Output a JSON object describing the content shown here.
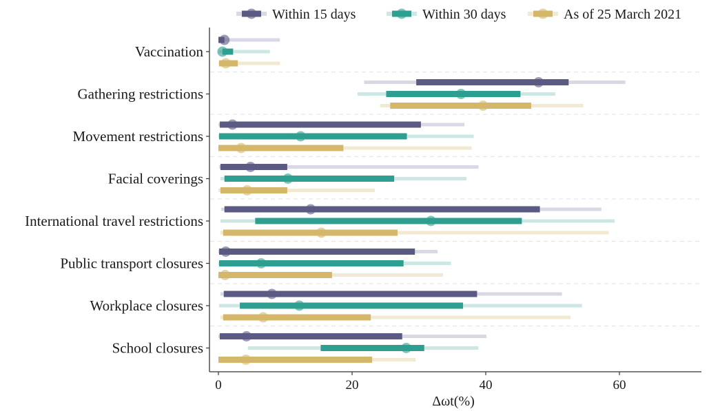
{
  "chart_data": {
    "type": "forest-interval",
    "xlabel": "Δωt(%)",
    "xlim": [
      -2,
      73
    ],
    "xticks": [
      0,
      20,
      40,
      60
    ],
    "grid": false,
    "legend_position": "top",
    "categories": [
      "Vaccination",
      "Gathering restrictions",
      "Movement restrictions",
      "Facial coverings",
      "International travel restrictions",
      "Public transport closures",
      "Workplace closures",
      "School closures"
    ],
    "series": [
      {
        "name": "Within 15 days",
        "color": "#5b5a82",
        "light_color": "#d9d8e4",
        "points": [
          {
            "point": 0.9,
            "inner": [
              0,
              0.9
            ],
            "outer": [
              0,
              9.2
            ]
          },
          {
            "point": 47.9,
            "inner": [
              29.6,
              52.4
            ],
            "outer": [
              21.8,
              60.9
            ]
          },
          {
            "point": 2.1,
            "inner": [
              0.2,
              30.3
            ],
            "outer": [
              0,
              36.8
            ]
          },
          {
            "point": 4.8,
            "inner": [
              0.3,
              10.3
            ],
            "outer": [
              0.1,
              38.9
            ]
          },
          {
            "point": 13.8,
            "inner": [
              0.9,
              48.1
            ],
            "outer": [
              0.4,
              57.3
            ]
          },
          {
            "point": 1.1,
            "inner": [
              0.1,
              29.4
            ],
            "outer": [
              0,
              32.8
            ]
          },
          {
            "point": 8.0,
            "inner": [
              0.8,
              38.7
            ],
            "outer": [
              0.3,
              51.4
            ]
          },
          {
            "point": 4.2,
            "inner": [
              0.2,
              27.5
            ],
            "outer": [
              0,
              40.1
            ]
          }
        ]
      },
      {
        "name": "Within 30 days",
        "color": "#2e9e90",
        "light_color": "#cde8e4",
        "points": [
          {
            "point": 0.6,
            "inner": [
              0.6,
              2.2
            ],
            "outer": [
              0,
              7.7
            ]
          },
          {
            "point": 36.3,
            "inner": [
              25.1,
              45.2
            ],
            "outer": [
              20.8,
              50.4
            ]
          },
          {
            "point": 12.3,
            "inner": [
              0.1,
              28.2
            ],
            "outer": [
              0,
              38.2
            ]
          },
          {
            "point": 10.4,
            "inner": [
              0.9,
              26.3
            ],
            "outer": [
              0.3,
              37.1
            ]
          },
          {
            "point": 31.8,
            "inner": [
              5.5,
              45.4
            ],
            "outer": [
              0.3,
              59.3
            ]
          },
          {
            "point": 6.4,
            "inner": [
              0.1,
              27.7
            ],
            "outer": [
              0,
              34.8
            ]
          },
          {
            "point": 12.1,
            "inner": [
              3.2,
              36.6
            ],
            "outer": [
              0.1,
              54.4
            ]
          },
          {
            "point": 28.1,
            "inner": [
              15.3,
              30.8
            ],
            "outer": [
              4.4,
              38.9
            ]
          }
        ]
      },
      {
        "name": "As of 25 March 2021",
        "color": "#d4b76a",
        "light_color": "#f1e9d2",
        "points": [
          {
            "point": 1.1,
            "inner": [
              0.1,
              2.9
            ],
            "outer": [
              0,
              9.2
            ]
          },
          {
            "point": 39.6,
            "inner": [
              25.7,
              46.8
            ],
            "outer": [
              24.2,
              54.6
            ]
          },
          {
            "point": 3.4,
            "inner": [
              0,
              18.7
            ],
            "outer": [
              0,
              37.9
            ]
          },
          {
            "point": 4.3,
            "inner": [
              0.3,
              10.3
            ],
            "outer": [
              0,
              23.4
            ]
          },
          {
            "point": 15.4,
            "inner": [
              0.7,
              26.8
            ],
            "outer": [
              0.3,
              58.4
            ]
          },
          {
            "point": 1.0,
            "inner": [
              0,
              17.0
            ],
            "outer": [
              0,
              33.6
            ]
          },
          {
            "point": 6.7,
            "inner": [
              0.7,
              22.8
            ],
            "outer": [
              0.3,
              52.7
            ]
          },
          {
            "point": 4.1,
            "inner": [
              0,
              23.0
            ],
            "outer": [
              0,
              29.5
            ]
          }
        ]
      }
    ]
  }
}
